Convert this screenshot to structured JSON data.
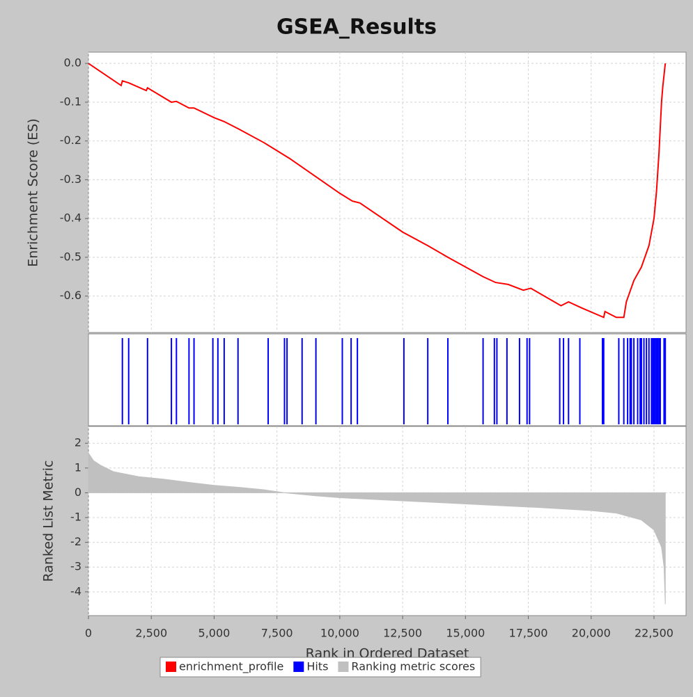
{
  "chart_data": [
    {
      "type": "line",
      "title": "GSEA_Results",
      "y_label": "Enrichment Score (ES)",
      "x": [
        0,
        1300,
        1350,
        1600,
        2300,
        2350,
        3300,
        3500,
        4000,
        4200,
        5000,
        5400,
        6000,
        7000,
        8000,
        9000,
        10000,
        10500,
        10800,
        12500,
        13500,
        14300,
        15700,
        16200,
        16700,
        17300,
        17600,
        18800,
        19100,
        19600,
        20500,
        20550,
        21000,
        21300,
        21400,
        21700,
        22000,
        22300,
        22500,
        22600,
        22700,
        22800,
        22850,
        22950
      ],
      "series": [
        {
          "name": "enrichment_profile",
          "color": "#ff0000",
          "values": [
            0.0,
            -0.057,
            -0.045,
            -0.05,
            -0.07,
            -0.063,
            -0.1,
            -0.098,
            -0.115,
            -0.115,
            -0.14,
            -0.15,
            -0.17,
            -0.205,
            -0.245,
            -0.29,
            -0.335,
            -0.355,
            -0.36,
            -0.435,
            -0.47,
            -0.5,
            -0.55,
            -0.565,
            -0.57,
            -0.585,
            -0.58,
            -0.625,
            -0.615,
            -0.63,
            -0.655,
            -0.64,
            -0.655,
            -0.655,
            -0.615,
            -0.56,
            -0.525,
            -0.47,
            -0.4,
            -0.33,
            -0.23,
            -0.1,
            -0.06,
            0.0
          ]
        }
      ],
      "xlim": [
        0,
        23775
      ],
      "xticks": [
        0,
        2500,
        5000,
        7500,
        10000,
        12500,
        15000,
        17500,
        20000,
        22500
      ],
      "ylim": [
        -0.694,
        0.029
      ],
      "yticks": [
        {
          "value": 0,
          "label": "0.0"
        },
        -0.1,
        -0.2,
        -0.3,
        -0.4,
        -0.5,
        -0.6
      ],
      "grid": true
    },
    {
      "type": "rug",
      "xlim": [
        0,
        23775
      ],
      "series": [
        {
          "name": "Hits",
          "color": "#0000ff",
          "x": [
            1350,
            1600,
            2350,
            3300,
            3500,
            4000,
            4200,
            4950,
            5150,
            5400,
            5950,
            7150,
            7800,
            7900,
            8500,
            9050,
            10100,
            10450,
            10700,
            12550,
            13500,
            14300,
            15700,
            16150,
            16250,
            16650,
            17150,
            17450,
            17550,
            18750,
            18900,
            19100,
            19550,
            20450,
            20500,
            21100,
            21300,
            21450,
            21550,
            21600,
            21700,
            21850,
            21950,
            22000,
            22100,
            22200,
            22300,
            22400,
            22450,
            22500,
            22550,
            22600,
            22650,
            22700,
            22750,
            22900,
            22950
          ]
        }
      ]
    },
    {
      "type": "area",
      "y_label": "Ranked List Metric",
      "x_label": "Rank in Ordered Dataset",
      "x": [
        0,
        200,
        500,
        1000,
        2000,
        3000,
        4000,
        5000,
        6000,
        7000,
        7800,
        9000,
        10000,
        12000,
        14000,
        16000,
        18000,
        20000,
        21000,
        22000,
        22500,
        22800,
        22900,
        22950
      ],
      "series": [
        {
          "name": "Ranking metric scores",
          "color": "#c0c0c0",
          "values": [
            1.6,
            1.3,
            1.1,
            0.85,
            0.65,
            0.55,
            0.42,
            0.3,
            0.22,
            0.12,
            0.0,
            -0.12,
            -0.2,
            -0.3,
            -0.4,
            -0.5,
            -0.6,
            -0.72,
            -0.82,
            -1.1,
            -1.5,
            -2.2,
            -3.0,
            -4.5
          ]
        }
      ],
      "xlim": [
        0,
        23775
      ],
      "xticks": [
        0,
        {
          "value": 2500,
          "label": "2,500"
        },
        {
          "value": 5000,
          "label": "5,000"
        },
        {
          "value": 7500,
          "label": "7,500"
        },
        {
          "value": 10000,
          "label": "10,000"
        },
        {
          "value": 12500,
          "label": "12,500"
        },
        {
          "value": 15000,
          "label": "15,000"
        },
        {
          "value": 17500,
          "label": "17,500"
        },
        {
          "value": 20000,
          "label": "20,000"
        },
        {
          "value": 22500,
          "label": "22,500"
        }
      ],
      "ylim": [
        -4.96,
        2.68
      ],
      "yticks": [
        2,
        1,
        0,
        -1,
        -2,
        -3,
        -4
      ],
      "grid": true
    }
  ]
}
